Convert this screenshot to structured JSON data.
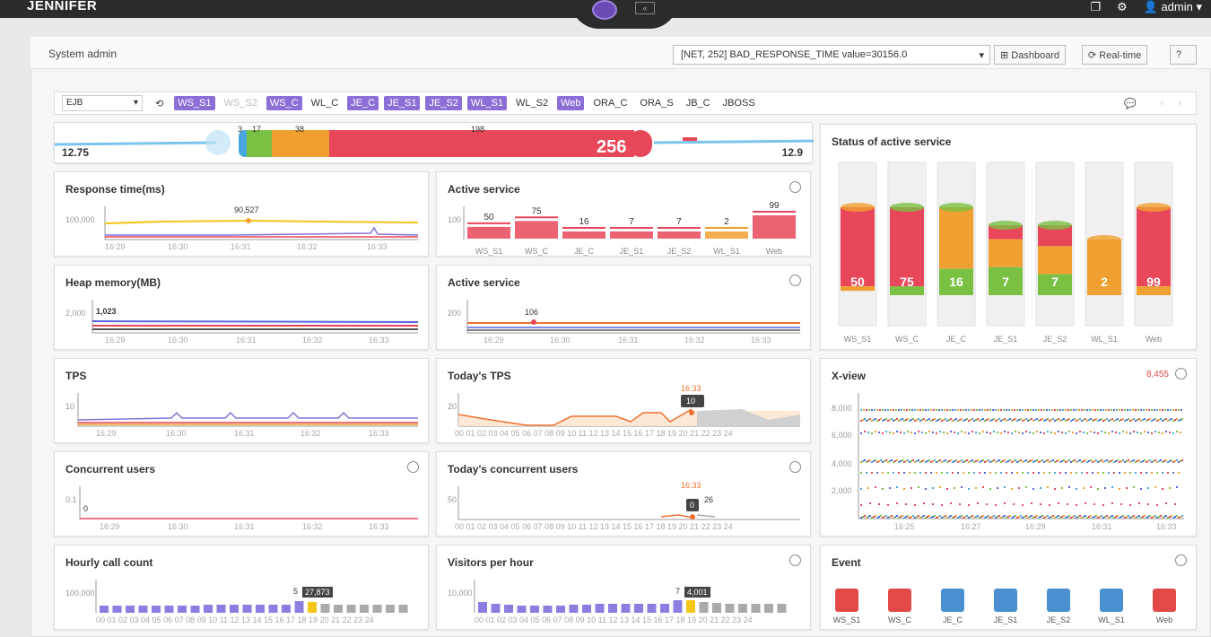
{
  "app": {
    "brand": "JENNIFER",
    "user": "admin"
  },
  "sysbar": {
    "title": "System admin",
    "alert": "[NET, 252] BAD_RESPONSE_TIME value=30156.0",
    "dashboard": "Dashboard",
    "realtime": "Real-time"
  },
  "filter": {
    "select": "EJB",
    "tags": [
      {
        "label": "WS_S1",
        "on": true
      },
      {
        "label": "WS_S2",
        "on": false,
        "dim": true
      },
      {
        "label": "WS_C",
        "on": true
      },
      {
        "label": "WL_C",
        "on": false
      },
      {
        "label": "JE_C",
        "on": true
      },
      {
        "label": "JE_S1",
        "on": true
      },
      {
        "label": "JE_S2",
        "on": true
      },
      {
        "label": "WL_S1",
        "on": true
      },
      {
        "label": "WL_S2",
        "on": false
      },
      {
        "label": "Web",
        "on": true
      },
      {
        "label": "ORA_C",
        "on": false
      },
      {
        "label": "ORA_S",
        "on": false
      },
      {
        "label": "JB_C",
        "on": false
      },
      {
        "label": "JBOSS",
        "on": false
      }
    ]
  },
  "speedbar": {
    "left": "12.75",
    "right": "12.9",
    "total": "256",
    "seg_labels": [
      "3",
      "17",
      "38",
      "198"
    ]
  },
  "cards": {
    "response": {
      "title": "Response time(ms)",
      "y": "100,000",
      "peak": "90,527",
      "ticks": [
        "16:29",
        "16:30",
        "16:31",
        "16:32",
        "16:33"
      ]
    },
    "active1": {
      "title": "Active service",
      "y": "100",
      "values": [
        "50",
        "75",
        "16",
        "7",
        "7",
        "2",
        "99"
      ],
      "labels": [
        "WS_S1",
        "WS_C",
        "JE_C",
        "JE_S1",
        "JE_S2",
        "WL_S1",
        "Web"
      ]
    },
    "heap": {
      "title": "Heap memory(MB)",
      "y": "2,000",
      "peak": "1,023",
      "ticks": [
        "16:29",
        "16:30",
        "16:31",
        "16:32",
        "16:33"
      ]
    },
    "active2": {
      "title": "Active service",
      "y": "200",
      "peak": "106",
      "ticks": [
        "16:29",
        "16:30",
        "16:31",
        "16:32",
        "16:33"
      ]
    },
    "tps": {
      "title": "TPS",
      "y": "10",
      "ticks": [
        "16:29",
        "16:30",
        "16:31",
        "16:32",
        "16:33"
      ]
    },
    "todaytps": {
      "title": "Today's TPS",
      "y": "20",
      "marker_time": "16:33",
      "marker_val": "10",
      "hours": "00 01 02 03 04 05 06 07 08 09 10 11 12 13 14 15 16 17 18 19 20 21 22 23 24"
    },
    "concurrent": {
      "title": "Concurrent users",
      "y": "0.1",
      "zero": "0",
      "ticks": [
        "16:29",
        "16:30",
        "16:31",
        "16:32",
        "16:33"
      ]
    },
    "todayconc": {
      "title": "Today's concurrent users",
      "y": "50",
      "marker_time": "16:33",
      "marker_val": "0",
      "side": "26",
      "hours": "00 01 02 03 04 05 06 07 08 09 10 11 12 13 14 15 16 17 18 19 20 21 22 23 24"
    },
    "hourly": {
      "title": "Hourly call count",
      "y": "100,000",
      "bubble": "27,873",
      "prev": "5",
      "hours": "00 01 02 03 04 05 06 07 08 09 10 11 12 13 14 15 16 17 18 19 20 21 22 23 24"
    },
    "visitors": {
      "title": "Visitors per hour",
      "y": "10,000",
      "bubble": "4,001",
      "prev": "7",
      "hours": "00 01 02 03 04 05 06 07 08 09 10 11 12 13 14 15 16 17 18 19 20 21 22 23 24"
    },
    "status": {
      "title": "Status of active service",
      "values": [
        "50",
        "75",
        "16",
        "7",
        "7",
        "2",
        "99"
      ],
      "labels": [
        "WS_S1",
        "WS_C",
        "JE_C",
        "JE_S1",
        "JE_S2",
        "WL_S1",
        "Web"
      ]
    },
    "xview": {
      "title": "X-view",
      "count": "8,455",
      "y": [
        "8,000",
        "6,000",
        "4,000",
        "2,000"
      ],
      "ticks": [
        "16:25",
        "16:27",
        "16:29",
        "16:31",
        "16:33"
      ]
    },
    "event": {
      "title": "Event",
      "labels": [
        "WS_S1",
        "WS_C",
        "JE_C",
        "JE_S1",
        "JE_S2",
        "WL_S1",
        "Web"
      ],
      "colors": [
        "#e24a4a",
        "#e24a4a",
        "#4a90d0",
        "#4a90d0",
        "#4a90d0",
        "#4a90d0",
        "#e24a4a"
      ]
    }
  }
}
